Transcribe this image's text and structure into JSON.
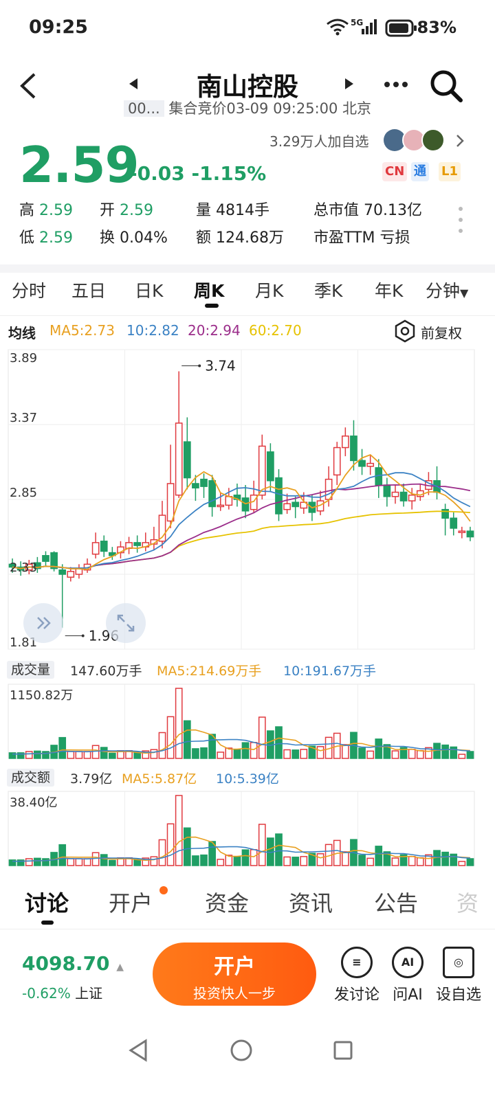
{
  "status_bar": {
    "time": "09:25",
    "network": "5G",
    "battery": "83%"
  },
  "header": {
    "title": "南山控股",
    "code": "00...",
    "subtitle": "集合竞价03-09 09:25:00 北京"
  },
  "quote": {
    "price": "2.59",
    "change": "-0.03",
    "change_pct": "-1.15%",
    "watchers": "3.29万人加自选",
    "badges": [
      "CN",
      "通",
      "L1"
    ],
    "stats": [
      {
        "label": "高",
        "value": "2.59"
      },
      {
        "label": "开",
        "value": "2.59"
      },
      {
        "label": "量",
        "value": "4814手"
      },
      {
        "label": "总市值",
        "value": "70.13亿"
      },
      {
        "label": "低",
        "value": "2.59"
      },
      {
        "label": "换",
        "value": "0.04%"
      },
      {
        "label": "额",
        "value": "124.68万"
      },
      {
        "label": "市盈TTM",
        "value": "亏损"
      }
    ]
  },
  "tabs": [
    "分时",
    "五日",
    "日K",
    "周K",
    "月K",
    "季K",
    "年K",
    "分钟"
  ],
  "active_tab": "周K",
  "ma_legend": {
    "label": "均线",
    "ma5": "MA5:2.73",
    "ma10": "10:2.82",
    "ma20": "20:2.94",
    "ma60": "60:2.70",
    "adjust": "前复权"
  },
  "colors": {
    "up": "#e0393e",
    "down": "#1f9e64",
    "ma5": "#e8a020",
    "ma10": "#3b82c4",
    "ma20": "#9b2d8a",
    "ma60": "#e6c200"
  },
  "volume_legend": {
    "label": "成交量",
    "value": "147.60万手",
    "ma5": "MA5:214.69万手",
    "ma10": "10:191.67万手",
    "max": "1150.82万"
  },
  "amount_legend": {
    "label": "成交额",
    "value": "3.79亿",
    "ma5": "MA5:5.87亿",
    "ma10": "10:5.39亿",
    "max": "38.40亿"
  },
  "chart_data": {
    "type": "candlestick",
    "y_ticks": [
      "3.89",
      "3.37",
      "2.85",
      "2.33",
      "1.81"
    ],
    "ylim": [
      1.81,
      3.89
    ],
    "high_label": "3.74",
    "low_label": "1.96",
    "candles": [
      [
        2.4,
        2.38,
        2.44,
        2.34
      ],
      [
        2.38,
        2.36,
        2.42,
        2.32
      ],
      [
        2.36,
        2.4,
        2.43,
        2.33
      ],
      [
        2.41,
        2.37,
        2.45,
        2.34
      ],
      [
        2.46,
        2.42,
        2.49,
        2.39
      ],
      [
        2.48,
        2.37,
        2.49,
        2.35
      ],
      [
        2.36,
        2.33,
        2.4,
        1.96
      ],
      [
        2.31,
        2.35,
        2.38,
        2.28
      ],
      [
        2.33,
        2.37,
        2.4,
        2.3
      ],
      [
        2.36,
        2.4,
        2.44,
        2.34
      ],
      [
        2.47,
        2.55,
        2.62,
        2.44
      ],
      [
        2.56,
        2.49,
        2.6,
        2.45
      ],
      [
        2.48,
        2.46,
        2.52,
        2.43
      ],
      [
        2.48,
        2.52,
        2.56,
        2.44
      ],
      [
        2.51,
        2.55,
        2.59,
        2.47
      ],
      [
        2.55,
        2.53,
        2.6,
        2.48
      ],
      [
        2.52,
        2.55,
        2.62,
        2.49
      ],
      [
        2.54,
        2.57,
        2.66,
        2.5
      ],
      [
        2.56,
        2.74,
        2.84,
        2.51
      ],
      [
        2.7,
        2.96,
        3.23,
        2.65
      ],
      [
        2.88,
        3.38,
        3.74,
        2.86
      ],
      [
        3.25,
        3.0,
        3.42,
        2.92
      ],
      [
        2.96,
        2.93,
        3.02,
        2.84
      ],
      [
        2.99,
        2.94,
        3.03,
        2.86
      ],
      [
        2.98,
        2.8,
        3.02,
        2.73
      ],
      [
        2.8,
        2.81,
        2.9,
        2.77
      ],
      [
        2.81,
        2.87,
        2.93,
        2.78
      ],
      [
        2.88,
        2.85,
        2.96,
        2.8
      ],
      [
        2.86,
        2.77,
        2.95,
        2.72
      ],
      [
        2.78,
        2.88,
        2.98,
        2.76
      ],
      [
        2.88,
        3.22,
        3.3,
        2.85
      ],
      [
        3.18,
        2.98,
        3.24,
        2.9
      ],
      [
        3.0,
        2.75,
        3.06,
        2.7
      ],
      [
        2.78,
        2.82,
        2.89,
        2.75
      ],
      [
        2.83,
        2.8,
        2.87,
        2.72
      ],
      [
        2.79,
        2.83,
        2.9,
        2.75
      ],
      [
        2.83,
        2.76,
        2.88,
        2.7
      ],
      [
        2.77,
        2.84,
        2.91,
        2.74
      ],
      [
        2.85,
        2.99,
        3.08,
        2.8
      ],
      [
        3.02,
        3.21,
        3.25,
        2.95
      ],
      [
        3.21,
        3.29,
        3.35,
        3.15
      ],
      [
        3.29,
        3.12,
        3.4,
        3.05
      ],
      [
        3.12,
        3.08,
        3.2,
        3.02
      ],
      [
        3.08,
        3.1,
        3.16,
        3.02
      ],
      [
        3.07,
        2.95,
        3.13,
        2.86
      ],
      [
        2.95,
        2.87,
        3.0,
        2.8
      ],
      [
        2.87,
        2.9,
        2.95,
        2.82
      ],
      [
        2.9,
        2.84,
        2.96,
        2.8
      ],
      [
        2.84,
        2.88,
        2.93,
        2.78
      ],
      [
        2.87,
        2.91,
        2.96,
        2.84
      ],
      [
        2.92,
        2.98,
        3.04,
        2.88
      ],
      [
        2.98,
        2.9,
        3.08,
        2.85
      ],
      [
        2.78,
        2.72,
        2.82,
        2.6
      ],
      [
        2.72,
        2.65,
        2.76,
        2.6
      ],
      [
        2.62,
        2.63,
        2.66,
        2.58
      ],
      [
        2.63,
        2.59,
        2.66,
        2.56
      ]
    ]
  }
}
